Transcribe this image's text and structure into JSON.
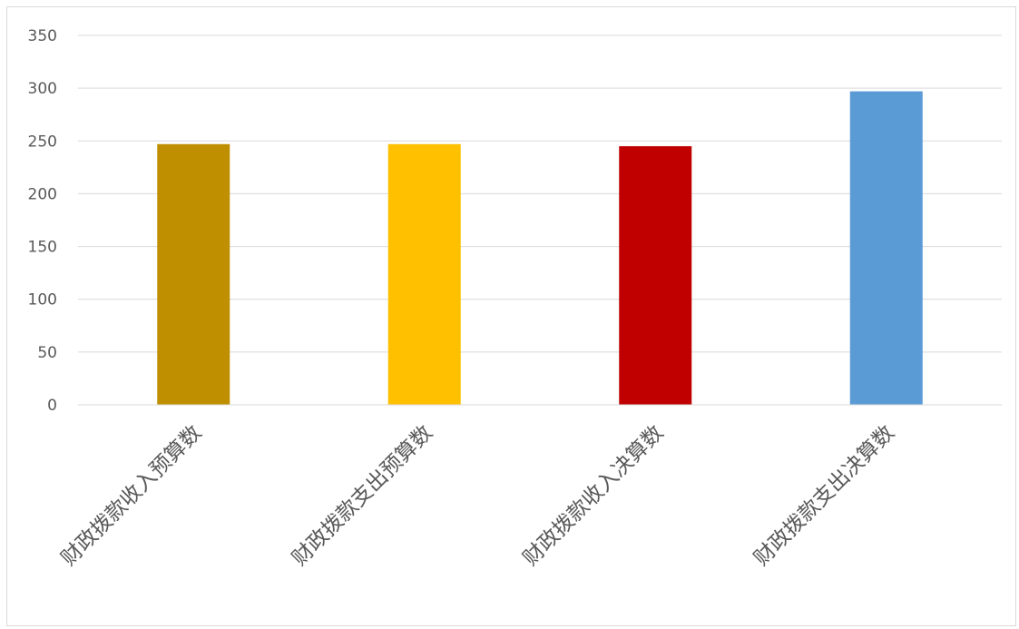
{
  "chart_data": {
    "type": "bar",
    "categories": [
      "财政拨款收入预算数",
      "财政拨款支出预算数",
      "财政拨款收入决算数",
      "财政拨款支出决算数"
    ],
    "values": [
      247,
      247,
      245,
      297
    ],
    "colors": [
      "#BF8F00",
      "#FFC000",
      "#C00000",
      "#5B9BD5"
    ],
    "title": "",
    "xlabel": "",
    "ylabel": "",
    "ylim": [
      0,
      350
    ],
    "yticks": [
      "0",
      "50",
      "100",
      "150",
      "200",
      "250",
      "300",
      "350"
    ],
    "grid": true,
    "legend": "none",
    "gridline_color": "#d9d9d9",
    "label_color": "#595959"
  }
}
